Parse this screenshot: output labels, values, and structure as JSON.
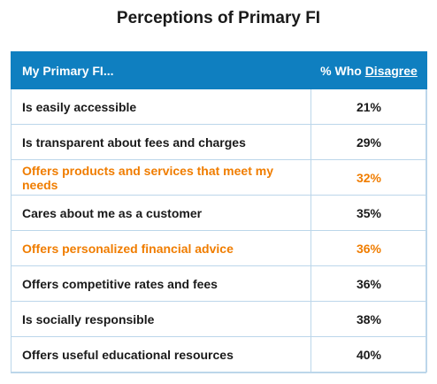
{
  "title": "Perceptions of Primary FI",
  "colors": {
    "header_bg": "#0f7fc0",
    "highlight": "#f07d00",
    "border": "#bcd6ea"
  },
  "chart_data": {
    "type": "table",
    "title": "Perceptions of Primary FI",
    "columns": [
      "My Primary FI...",
      "% Who Disagree"
    ],
    "header_col2_prefix": "% Who ",
    "header_col2_emph": "Disagree",
    "rows": [
      {
        "label": "Is easily accessible",
        "value": "21%",
        "highlight": false
      },
      {
        "label": "Is transparent about fees and charges",
        "value": "29%",
        "highlight": false
      },
      {
        "label": "Offers products and services that meet my needs",
        "value": "32%",
        "highlight": true
      },
      {
        "label": "Cares about me as a customer",
        "value": "35%",
        "highlight": false
      },
      {
        "label": "Offers personalized financial advice",
        "value": "36%",
        "highlight": true
      },
      {
        "label": "Offers competitive rates and fees",
        "value": "36%",
        "highlight": false
      },
      {
        "label": "Is socially responsible",
        "value": "38%",
        "highlight": false
      },
      {
        "label": "Offers useful educational resources",
        "value": "40%",
        "highlight": false
      }
    ]
  }
}
